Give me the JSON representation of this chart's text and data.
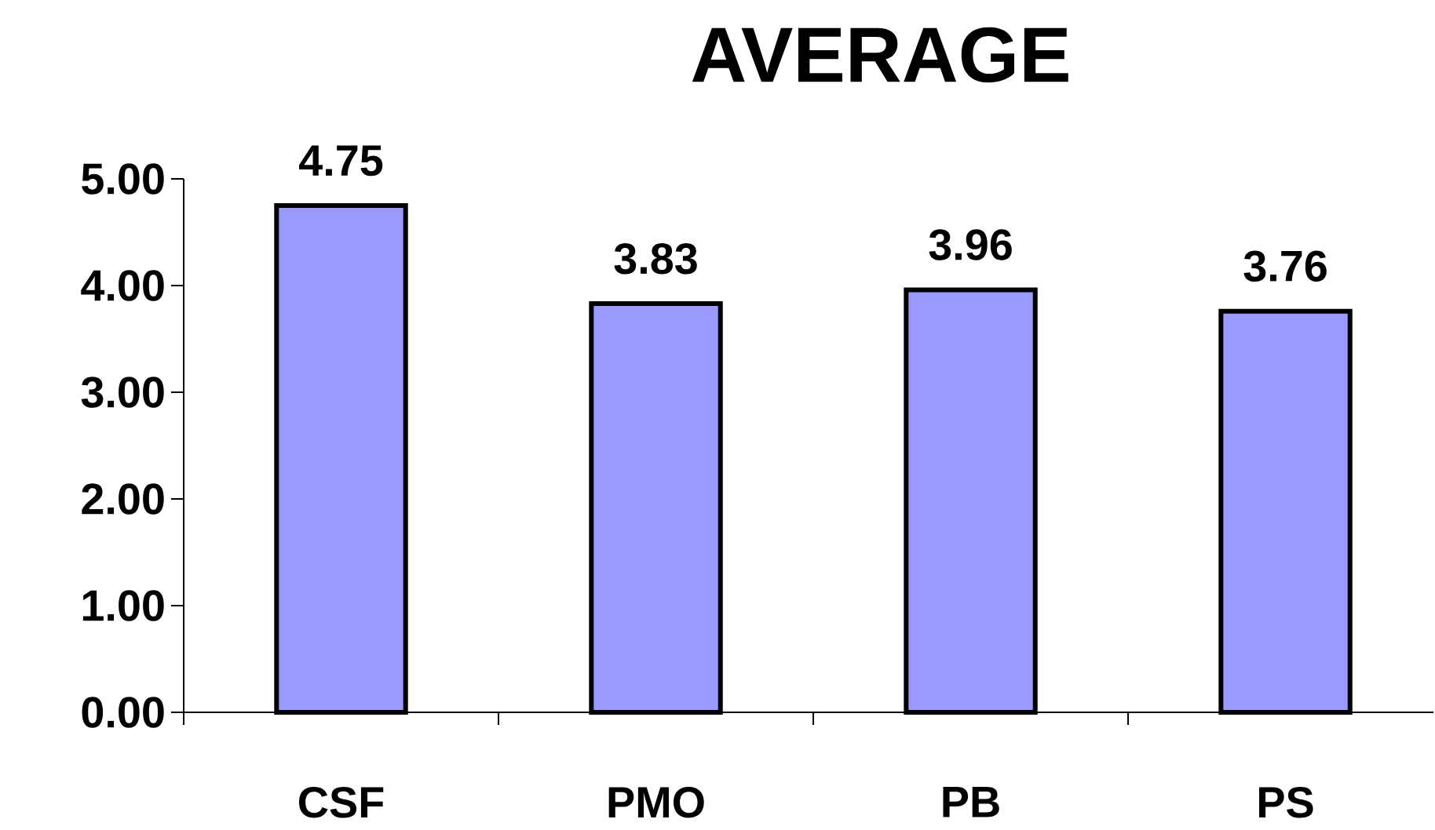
{
  "chart_data": {
    "type": "bar",
    "title": "AVERAGE",
    "categories": [
      "CSF",
      "PMO",
      "PB",
      "PS"
    ],
    "values": [
      4.75,
      3.83,
      3.96,
      3.76
    ],
    "color": "#9999ff",
    "ylim": [
      0,
      5
    ],
    "yticks": [
      {
        "value": 0,
        "label": "0.00"
      },
      {
        "value": 1,
        "label": "1.00"
      },
      {
        "value": 2,
        "label": "2.00"
      },
      {
        "value": 3,
        "label": "3.00"
      },
      {
        "value": 4,
        "label": "4.00"
      },
      {
        "value": 5,
        "label": "5.00"
      }
    ],
    "data_labels": true,
    "grid": false
  }
}
